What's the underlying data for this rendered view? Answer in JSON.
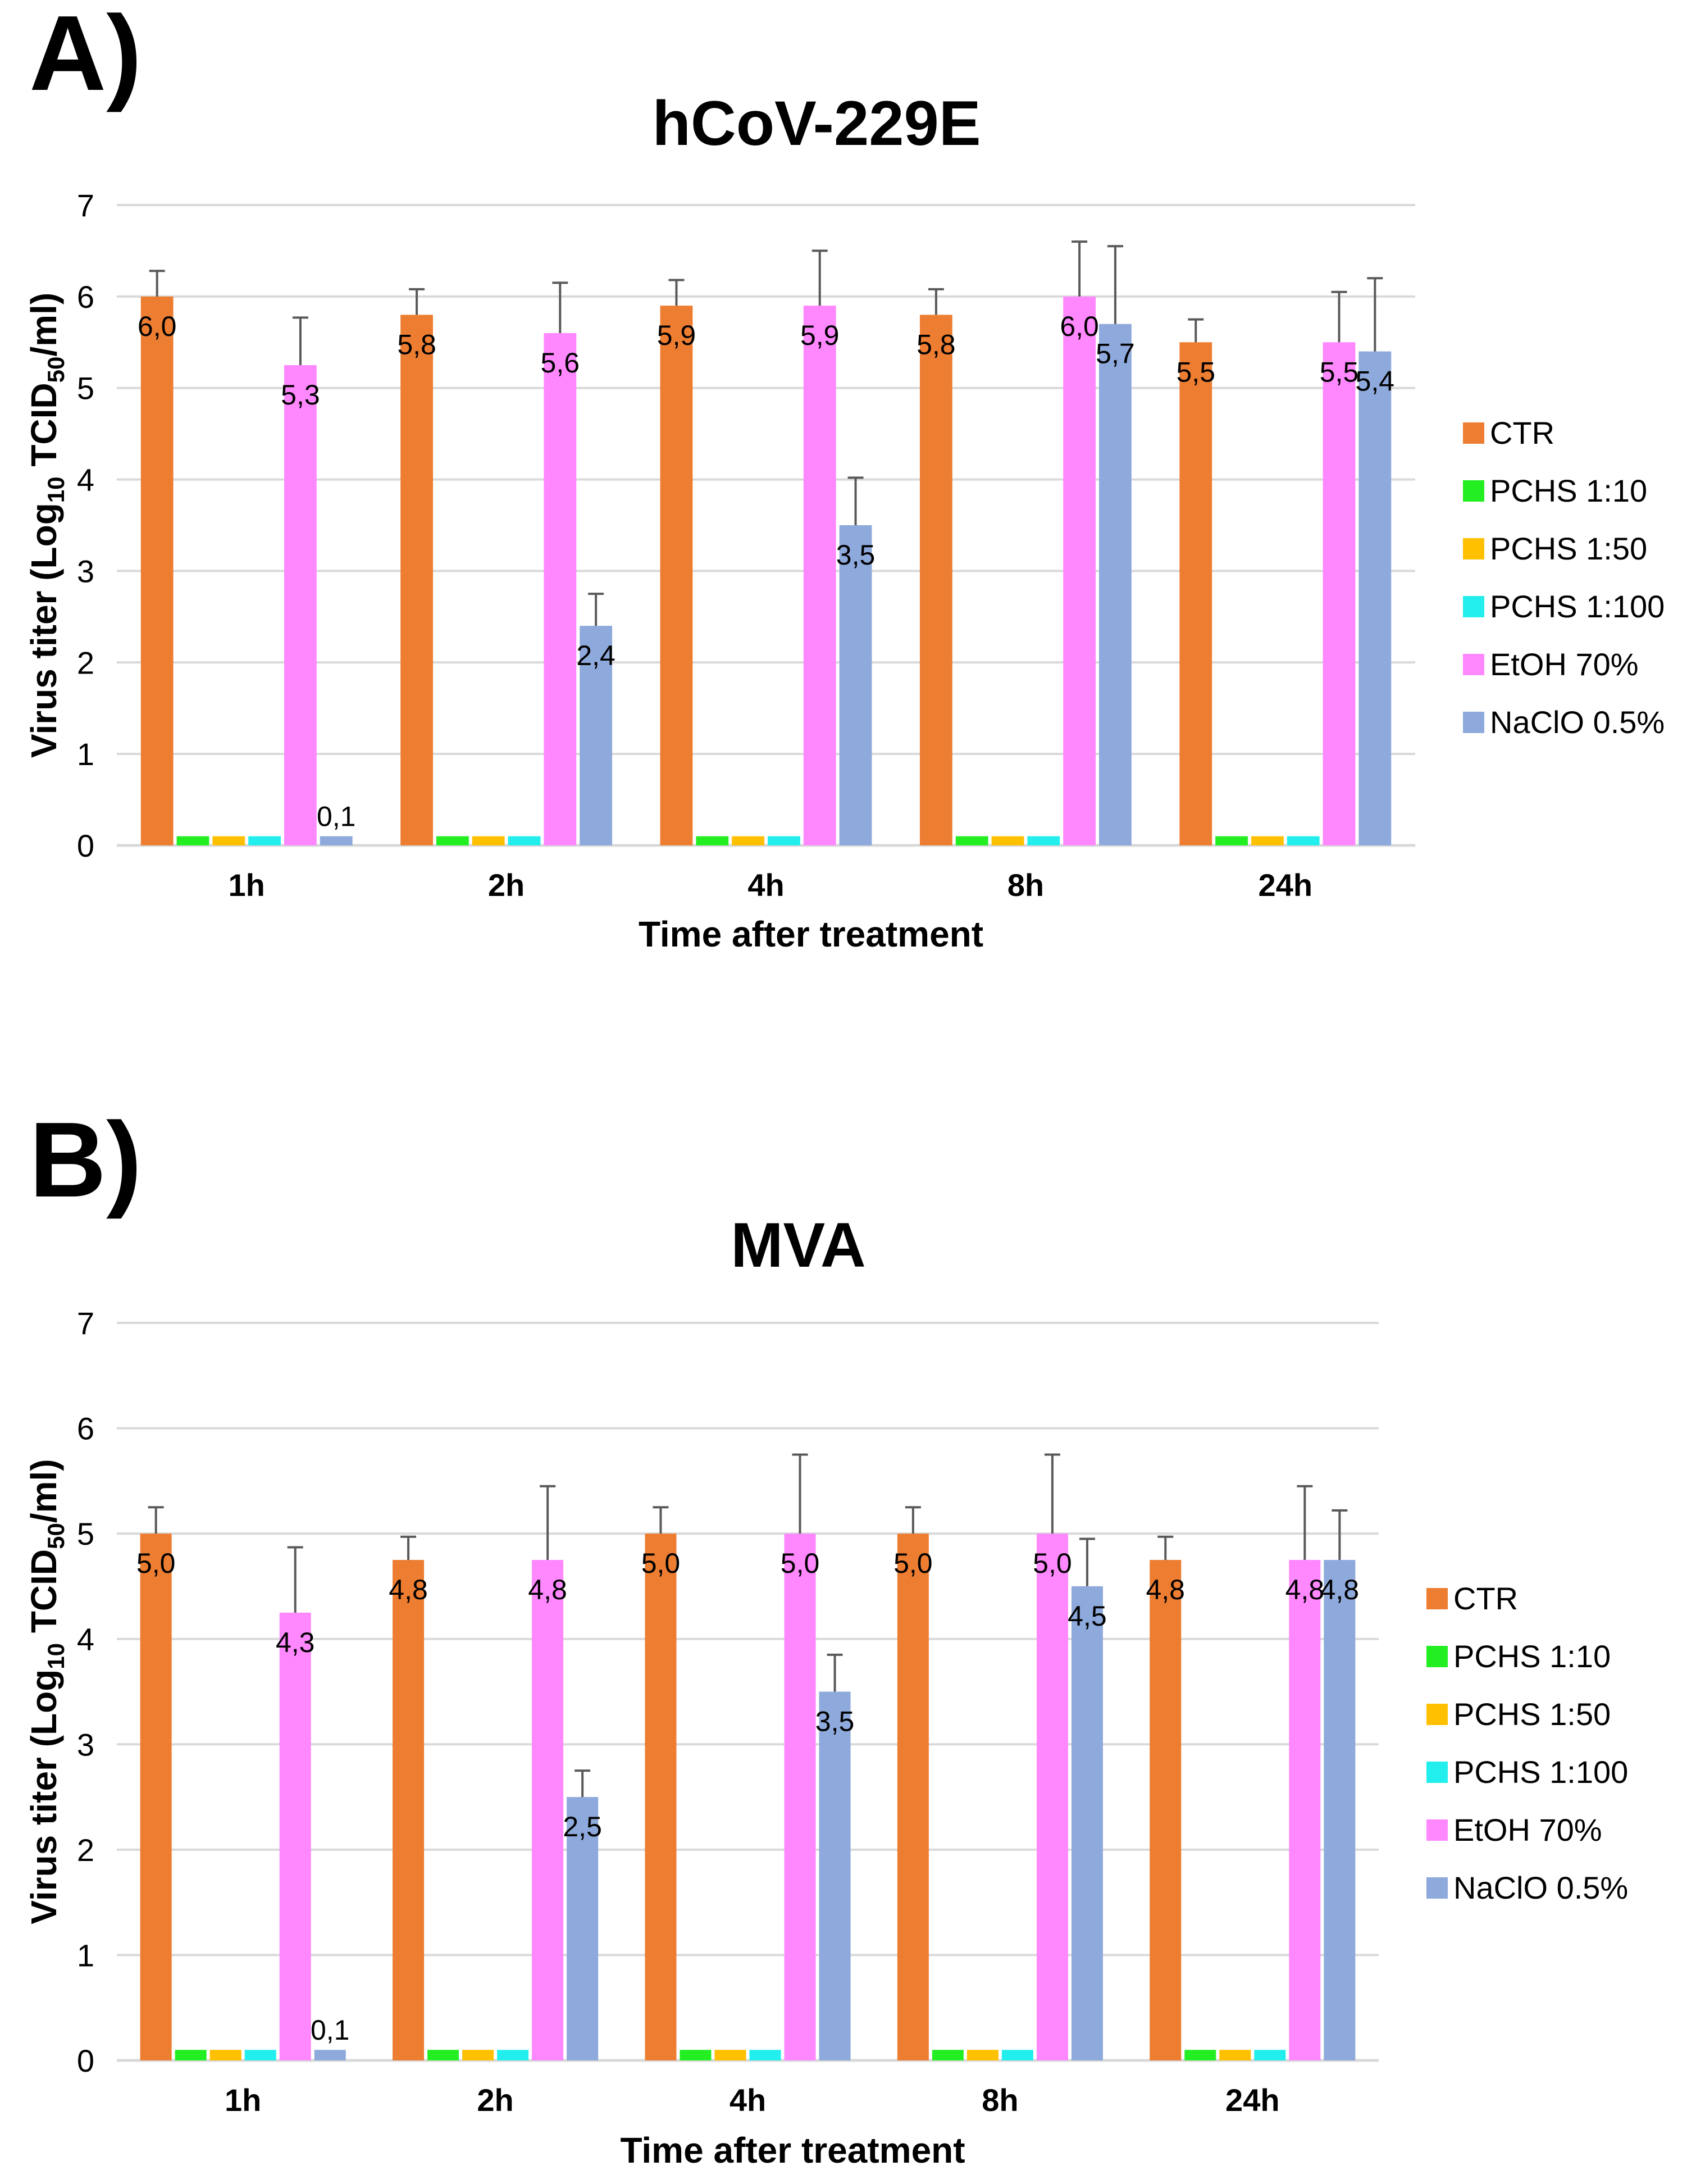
{
  "figure": {
    "panels": [
      {
        "letter": "A)"
      },
      {
        "letter": "B)"
      }
    ]
  },
  "chart_data": [
    {
      "type": "bar",
      "title": "hCoV-229E",
      "xlabel": "Time after treatment",
      "ylabel": {
        "prefix": "Virus titer (Log",
        "sub1": "10",
        "mid": " TCID",
        "sub2": "50",
        "suffix": "/ml)"
      },
      "ylim": [
        0,
        7
      ],
      "yticks": [
        "0",
        "1",
        "2",
        "3",
        "4",
        "5",
        "6",
        "7"
      ],
      "grid": true,
      "legend_position": "right",
      "categories": [
        "1h",
        "2h",
        "4h",
        "8h",
        "24h"
      ],
      "series": [
        {
          "name": "CTR",
          "color": "#ED7D31",
          "values": [
            6.0,
            5.8,
            5.9,
            5.8,
            5.5
          ],
          "errors": [
            0.28,
            0.28,
            0.28,
            0.28,
            0.25
          ],
          "labels": [
            "6,0",
            "5,8",
            "5,9",
            "5,8",
            "5,5"
          ]
        },
        {
          "name": "PCHS 1:10",
          "color": "#22EE22",
          "values": [
            0.1,
            0.1,
            0.1,
            0.1,
            0.1
          ],
          "errors": [
            0,
            0,
            0,
            0,
            0
          ],
          "labels": [
            "",
            "",
            "",
            "",
            ""
          ]
        },
        {
          "name": "PCHS 1:50",
          "color": "#FFC000",
          "values": [
            0.1,
            0.1,
            0.1,
            0.1,
            0.1
          ],
          "errors": [
            0,
            0,
            0,
            0,
            0
          ],
          "labels": [
            "",
            "",
            "",
            "",
            ""
          ]
        },
        {
          "name": "PCHS 1:100",
          "color": "#22EEEE",
          "values": [
            0.1,
            0.1,
            0.1,
            0.1,
            0.1
          ],
          "errors": [
            0,
            0,
            0,
            0,
            0
          ],
          "labels": [
            "",
            "",
            "",
            "",
            ""
          ]
        },
        {
          "name": "EtOH 70%",
          "color": "#FF88FF",
          "values": [
            5.25,
            5.6,
            5.9,
            6.0,
            5.5
          ],
          "errors": [
            0.52,
            0.55,
            0.6,
            0.6,
            0.55
          ],
          "labels": [
            "5,3",
            "5,6",
            "5,9",
            "6,0",
            "5,5"
          ]
        },
        {
          "name": "NaClO 0.5%",
          "color": "#8EA9DB",
          "values": [
            0.1,
            2.4,
            3.5,
            5.7,
            5.4
          ],
          "errors": [
            0,
            0.35,
            0.52,
            0.85,
            0.8
          ],
          "labels": [
            "0,1",
            "2,4",
            "3,5",
            "5,7",
            "5,4"
          ]
        }
      ]
    },
    {
      "type": "bar",
      "title": "MVA",
      "xlabel": "Time after treatment",
      "ylabel": {
        "prefix": "Virus titer (Log",
        "sub1": "10",
        "mid": " TCID",
        "sub2": "50",
        "suffix": "/ml)"
      },
      "ylim": [
        0,
        7
      ],
      "yticks": [
        "0",
        "1",
        "2",
        "3",
        "4",
        "5",
        "6",
        "7"
      ],
      "grid": true,
      "legend_position": "right",
      "categories": [
        "1h",
        "2h",
        "4h",
        "8h",
        "24h"
      ],
      "series": [
        {
          "name": "CTR",
          "color": "#ED7D31",
          "values": [
            5.0,
            4.75,
            5.0,
            5.0,
            4.75
          ],
          "errors": [
            0.25,
            0.22,
            0.25,
            0.25,
            0.22
          ],
          "labels": [
            "5,0",
            "4,8",
            "5,0",
            "5,0",
            "4,8"
          ]
        },
        {
          "name": "PCHS 1:10",
          "color": "#22EE22",
          "values": [
            0.1,
            0.1,
            0.1,
            0.1,
            0.1
          ],
          "errors": [
            0,
            0,
            0,
            0,
            0
          ],
          "labels": [
            "",
            "",
            "",
            "",
            ""
          ]
        },
        {
          "name": "PCHS 1:50",
          "color": "#FFC000",
          "values": [
            0.1,
            0.1,
            0.1,
            0.1,
            0.1
          ],
          "errors": [
            0,
            0,
            0,
            0,
            0
          ],
          "labels": [
            "",
            "",
            "",
            "",
            ""
          ]
        },
        {
          "name": "PCHS 1:100",
          "color": "#22EEEE",
          "values": [
            0.1,
            0.1,
            0.1,
            0.1,
            0.1
          ],
          "errors": [
            0,
            0,
            0,
            0,
            0
          ],
          "labels": [
            "",
            "",
            "",
            "",
            ""
          ]
        },
        {
          "name": "EtOH 70%",
          "color": "#FF88FF",
          "values": [
            4.25,
            4.75,
            5.0,
            5.0,
            4.75
          ],
          "errors": [
            0.62,
            0.7,
            0.75,
            0.75,
            0.7
          ],
          "labels": [
            "4,3",
            "4,8",
            "5,0",
            "5,0",
            "4,8"
          ]
        },
        {
          "name": "NaClO 0.5%",
          "color": "#8EA9DB",
          "values": [
            0.1,
            2.5,
            3.5,
            4.5,
            4.75
          ],
          "errors": [
            0,
            0.25,
            0.35,
            0.45,
            0.47
          ],
          "labels": [
            "0,1",
            "2,5",
            "3,5",
            "4,5",
            "4,8"
          ]
        }
      ]
    }
  ]
}
